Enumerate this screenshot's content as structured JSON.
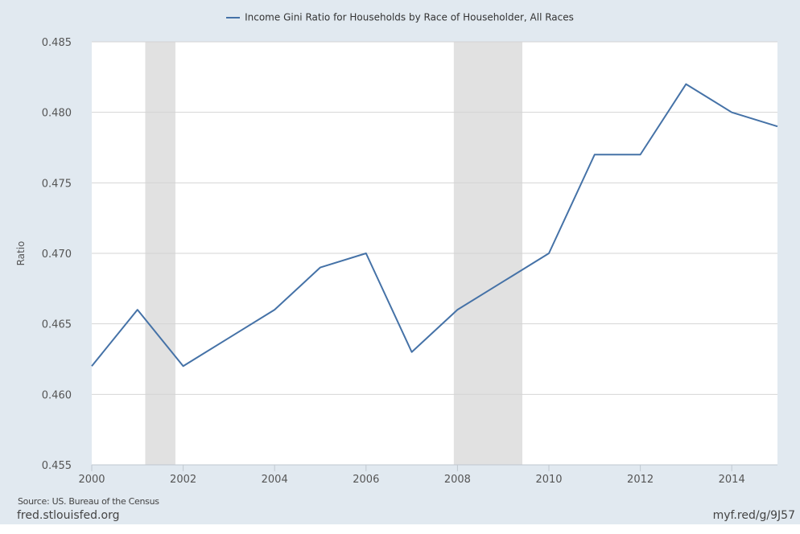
{
  "legend": {
    "label": "Income Gini Ratio for Households by Race of Householder, All Races",
    "color": "#4572a7"
  },
  "footer": {
    "source": "Source: US. Bureau of the Census",
    "site": "fred.stlouisfed.org",
    "short_link": "myf.red/g/9J57"
  },
  "chart_data": {
    "type": "line",
    "title": "",
    "xlabel": "",
    "ylabel": "Ratio",
    "x": [
      2000,
      2001,
      2002,
      2003,
      2004,
      2005,
      2006,
      2007,
      2008,
      2009,
      2010,
      2011,
      2012,
      2013,
      2014,
      2015
    ],
    "series": [
      {
        "name": "Income Gini Ratio for Households by Race of Householder, All Races",
        "color": "#4572a7",
        "values": [
          0.462,
          0.466,
          0.462,
          0.464,
          0.466,
          0.469,
          0.47,
          0.463,
          0.466,
          0.468,
          0.47,
          0.477,
          0.477,
          0.482,
          0.48,
          0.479
        ]
      }
    ],
    "xlim": [
      2000,
      2015
    ],
    "ylim": [
      0.455,
      0.485
    ],
    "x_ticks": [
      "2000",
      "2002",
      "2004",
      "2006",
      "2008",
      "2010",
      "2012",
      "2014"
    ],
    "y_ticks": [
      "0.455",
      "0.460",
      "0.465",
      "0.470",
      "0.475",
      "0.480",
      "0.485"
    ],
    "recessions": [
      [
        2001.17,
        2001.83
      ],
      [
        2007.92,
        2009.42
      ]
    ],
    "grid": true,
    "legend_position": "top"
  }
}
